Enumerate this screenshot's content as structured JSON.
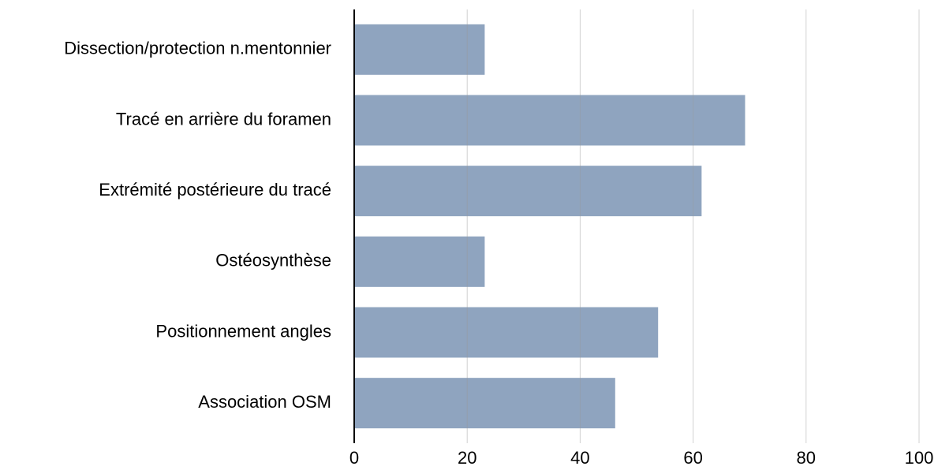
{
  "chart_data": {
    "type": "bar",
    "orientation": "horizontal",
    "categories": [
      "Dissection/protection n.mentonnier",
      "Tracé en arrière du foramen",
      "Extrémité postérieure du tracé",
      "Ostéosynthèse",
      "Positionnement angles",
      "Association OSM"
    ],
    "values": [
      23.1,
      69.2,
      61.5,
      23.1,
      53.8,
      46.2
    ],
    "color": "#8fa4bf",
    "xlim": [
      0,
      100
    ],
    "xticks": [
      0,
      20,
      40,
      60,
      80,
      100
    ],
    "grid": true
  }
}
